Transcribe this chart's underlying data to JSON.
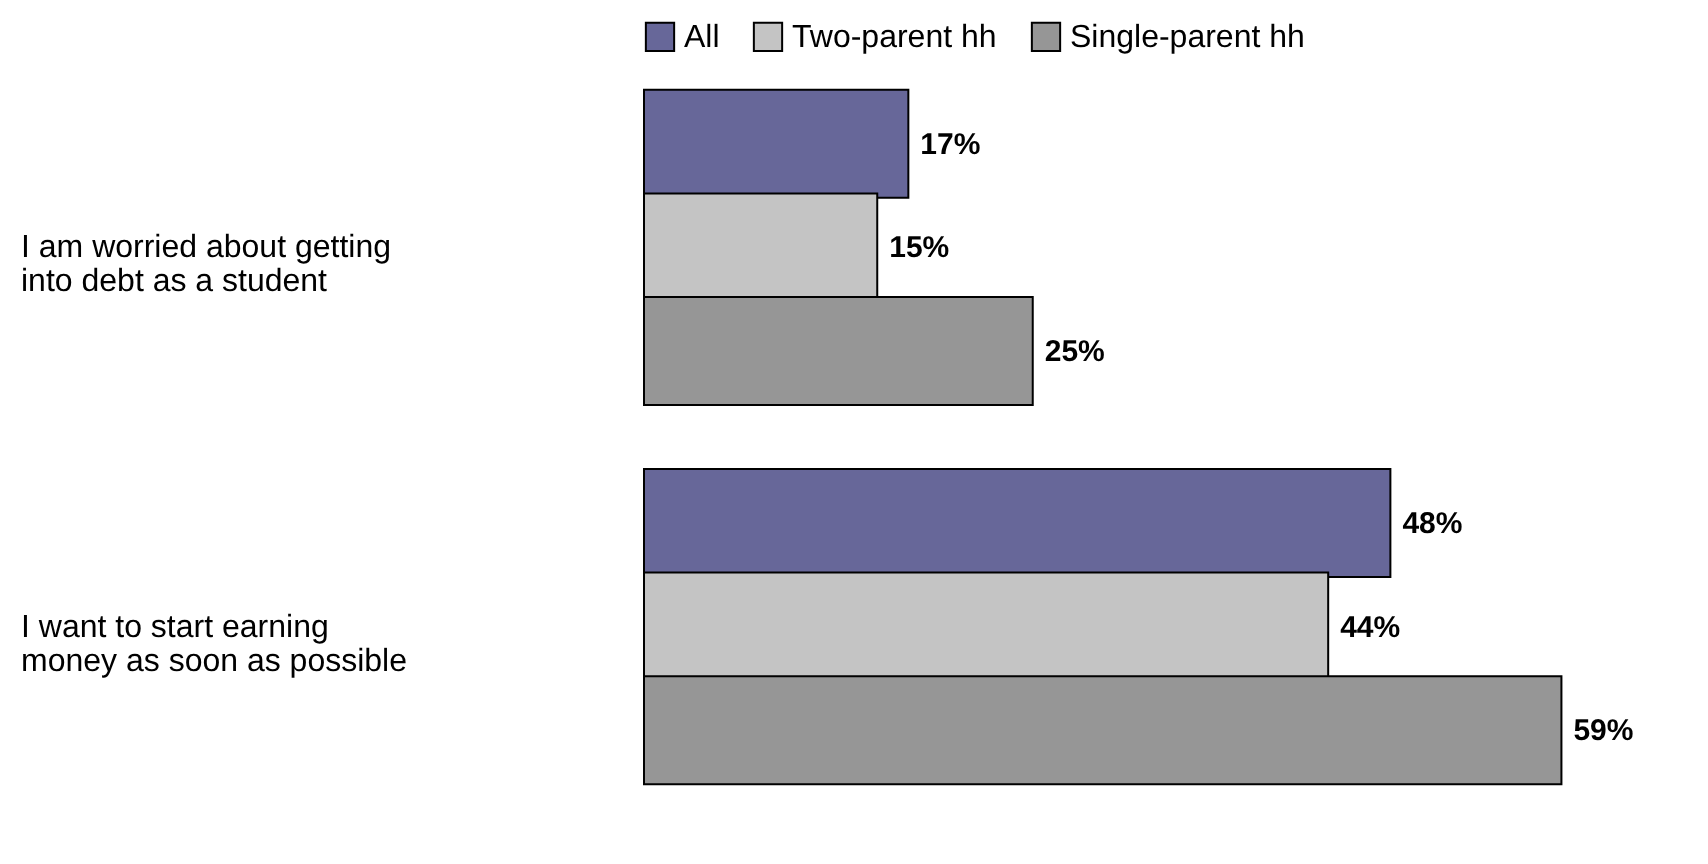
{
  "chart_data": {
    "type": "bar",
    "orientation": "horizontal",
    "categories": [
      "I am worried about getting into debt as a student",
      "I want to start earning money as soon as possible"
    ],
    "series": [
      {
        "name": "All",
        "color": "#676799",
        "values": [
          17,
          48
        ],
        "value_labels": [
          "17%",
          "48%"
        ]
      },
      {
        "name": "Two-parent hh",
        "color": "#c4c4c4",
        "values": [
          15,
          44
        ],
        "value_labels": [
          "15%",
          "44%"
        ]
      },
      {
        "name": "Single-parent hh",
        "color": "#969696",
        "values": [
          25,
          59
        ],
        "value_labels": [
          "25%",
          "59%"
        ]
      }
    ],
    "legend": "top",
    "tick_labels": "y"
  }
}
